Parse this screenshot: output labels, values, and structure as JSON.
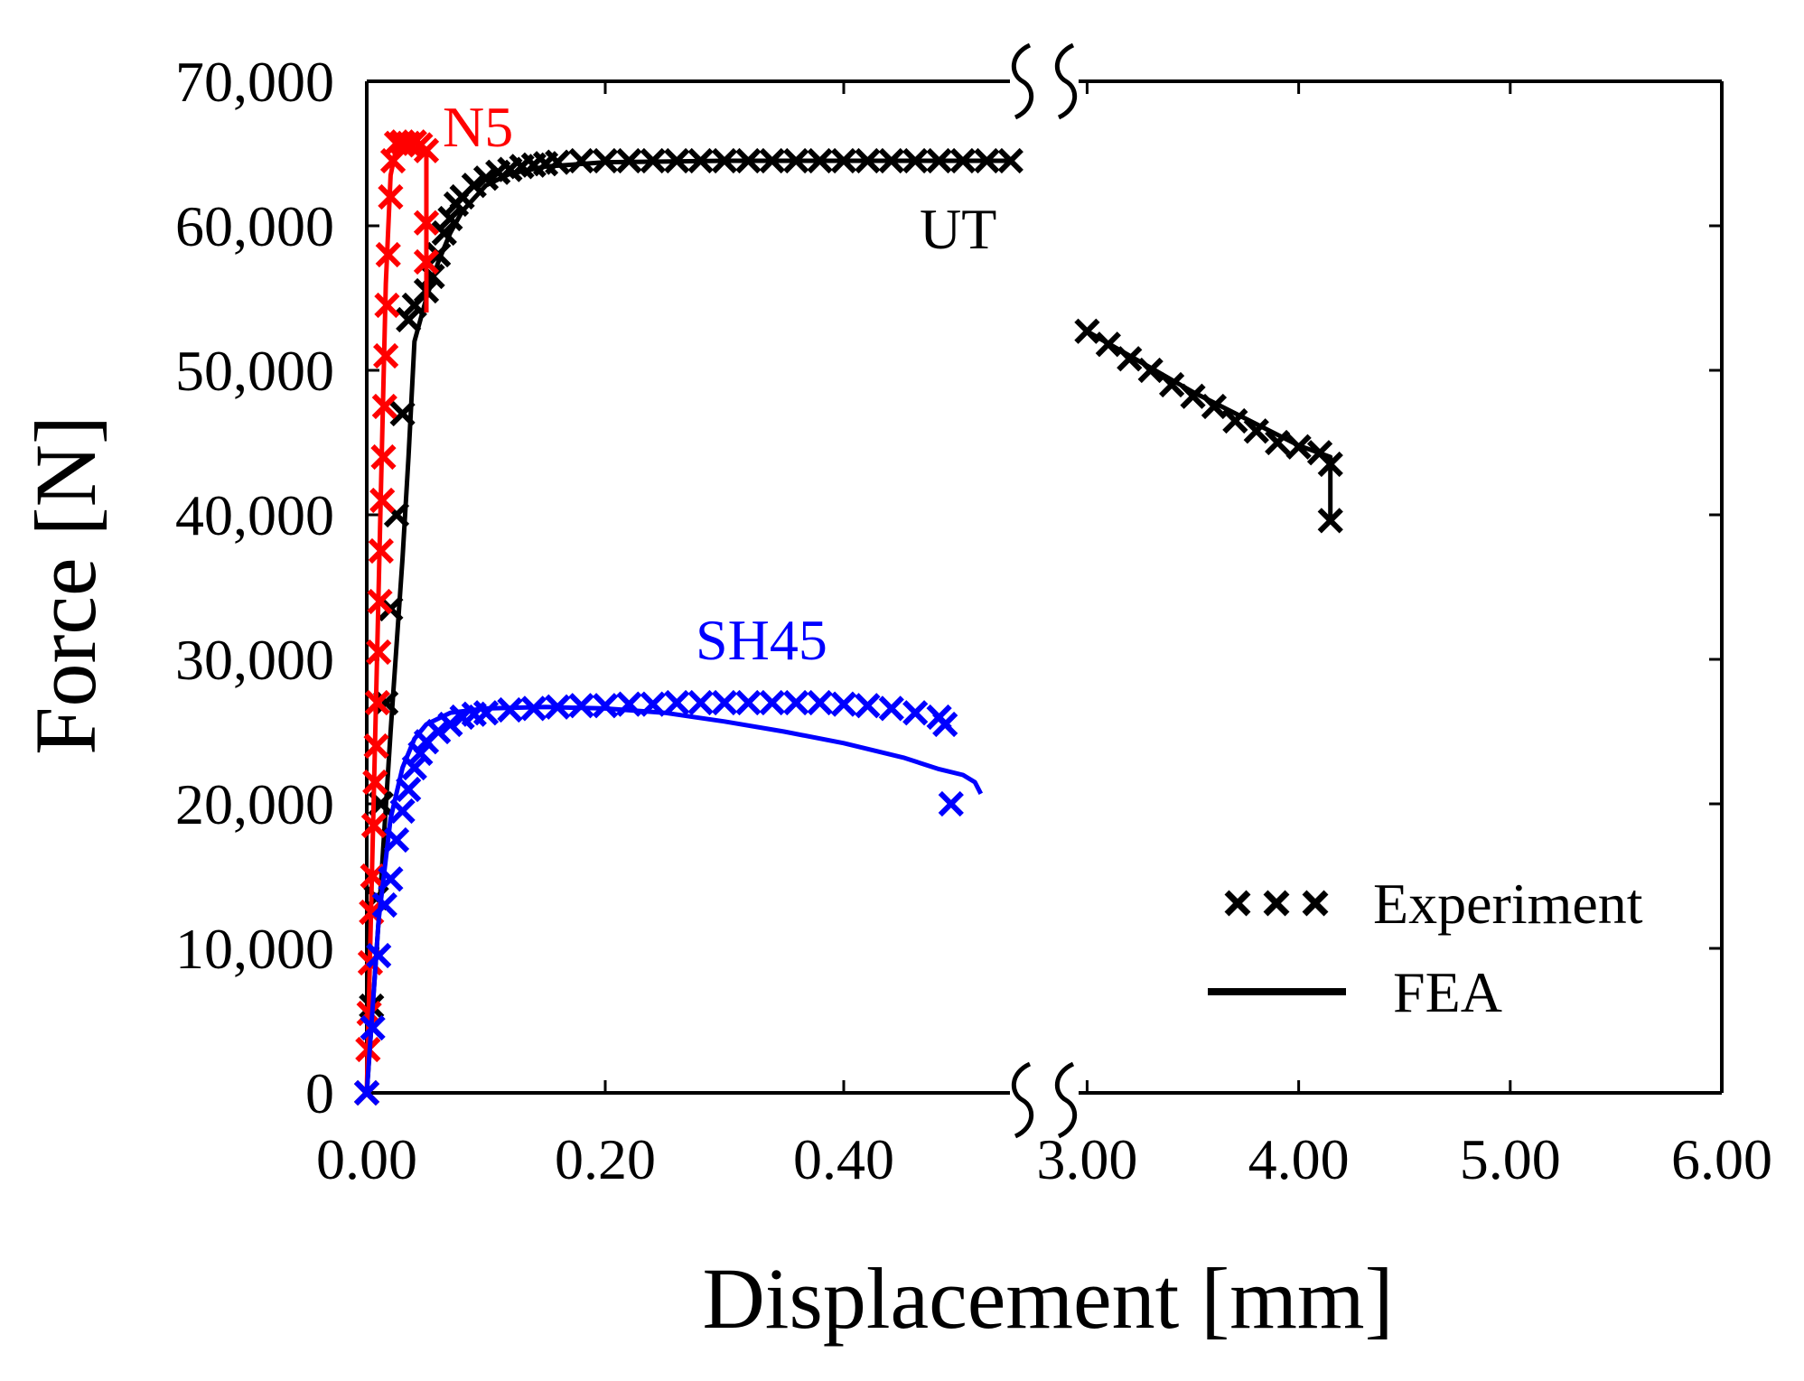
{
  "chart_data": {
    "type": "scatter",
    "title": "",
    "xlabel": "Displacement [mm]",
    "ylabel": "Force [N]",
    "broken_x_axis": true,
    "x_segments": [
      {
        "range": [
          0.0,
          0.55
        ],
        "ticks": [
          "0.00",
          "0.20",
          "0.40"
        ]
      },
      {
        "range": [
          2.9,
          6.0
        ],
        "ticks": [
          "3.00",
          "4.00",
          "5.00",
          "6.00"
        ]
      }
    ],
    "ylim": [
      0,
      70000
    ],
    "yticks": [
      "0",
      "10,000",
      "20,000",
      "30,000",
      "40,000",
      "50,000",
      "60,000",
      "70,000"
    ],
    "legend": {
      "position": "bottom-right",
      "entries": [
        {
          "label": "Experiment",
          "marker": "x"
        },
        {
          "label": "FEA",
          "marker": "line"
        }
      ]
    },
    "annotations": [
      {
        "text": "N5",
        "color": "#ff0000"
      },
      {
        "text": "UT",
        "color": "#000000"
      },
      {
        "text": "SH45",
        "color": "#0000ff"
      }
    ],
    "series": [
      {
        "name": "UT",
        "color": "#000000",
        "experiment": {
          "x": [
            0.0,
            0.004,
            0.008,
            0.012,
            0.016,
            0.02,
            0.025,
            0.03,
            0.035,
            0.04,
            0.05,
            0.055,
            0.06,
            0.065,
            0.07,
            0.075,
            0.08,
            0.09,
            0.1,
            0.11,
            0.12,
            0.13,
            0.14,
            0.15,
            0.16,
            0.18,
            0.2,
            0.22,
            0.24,
            0.26,
            0.28,
            0.3,
            0.32,
            0.34,
            0.36,
            0.38,
            0.4,
            0.42,
            0.44,
            0.46,
            0.48,
            0.5,
            0.52,
            0.54,
            3.0,
            3.1,
            3.2,
            3.3,
            3.4,
            3.5,
            3.6,
            3.7,
            3.8,
            3.9,
            4.0,
            4.1,
            4.15,
            4.15
          ],
          "y": [
            0,
            6000,
            13500,
            20000,
            27000,
            33500,
            40000,
            47000,
            53500,
            54500,
            55500,
            56500,
            58000,
            59500,
            60500,
            61500,
            62000,
            62800,
            63300,
            63700,
            63900,
            64100,
            64200,
            64300,
            64400,
            64500,
            64500,
            64500,
            64500,
            64500,
            64500,
            64500,
            64500,
            64500,
            64500,
            64500,
            64500,
            64500,
            64500,
            64500,
            64500,
            64500,
            64500,
            64500,
            52700,
            51800,
            50800,
            50000,
            49000,
            48200,
            47500,
            46500,
            45800,
            45000,
            44700,
            44300,
            43500,
            39600
          ]
        },
        "fea": {
          "x": [
            0.0,
            0.01,
            0.02,
            0.03,
            0.035,
            0.04,
            0.05,
            0.06,
            0.07,
            0.08,
            0.1,
            0.12,
            0.15,
            0.2,
            0.3,
            0.4,
            0.5,
            0.54,
            3.0,
            3.5,
            4.0,
            4.15,
            4.15
          ],
          "y": [
            0,
            12000,
            25000,
            37000,
            44000,
            52000,
            55000,
            57500,
            59500,
            61000,
            62800,
            63600,
            64100,
            64400,
            64500,
            64500,
            64500,
            64500,
            52700,
            48500,
            44800,
            44000,
            39600
          ]
        }
      },
      {
        "name": "N5",
        "color": "#ff0000",
        "experiment": {
          "x": [
            0.0,
            0.001,
            0.002,
            0.003,
            0.004,
            0.005,
            0.006,
            0.007,
            0.008,
            0.009,
            0.01,
            0.011,
            0.012,
            0.013,
            0.014,
            0.015,
            0.016,
            0.017,
            0.018,
            0.02,
            0.022,
            0.025,
            0.03,
            0.035,
            0.04,
            0.045,
            0.05,
            0.05,
            0.05
          ],
          "y": [
            0,
            3000,
            5500,
            9000,
            12500,
            15000,
            18500,
            21500,
            24000,
            27000,
            30500,
            34000,
            37500,
            41000,
            44000,
            47500,
            51000,
            54500,
            58000,
            62000,
            64500,
            65700,
            65800,
            65700,
            65800,
            65600,
            65200,
            60200,
            57500
          ]
        },
        "fea": {
          "x": [
            0.0,
            0.004,
            0.008,
            0.012,
            0.016,
            0.02,
            0.025,
            0.03,
            0.04,
            0.05,
            0.05
          ],
          "y": [
            0,
            14000,
            28000,
            42000,
            56000,
            63500,
            65500,
            65900,
            65900,
            65300,
            54000
          ]
        }
      },
      {
        "name": "SH45",
        "color": "#0000ff",
        "experiment": {
          "x": [
            0.0,
            0.005,
            0.01,
            0.015,
            0.02,
            0.025,
            0.03,
            0.035,
            0.04,
            0.045,
            0.05,
            0.06,
            0.07,
            0.08,
            0.09,
            0.1,
            0.12,
            0.14,
            0.16,
            0.18,
            0.2,
            0.22,
            0.24,
            0.26,
            0.28,
            0.3,
            0.32,
            0.34,
            0.36,
            0.38,
            0.4,
            0.42,
            0.44,
            0.46,
            0.48,
            0.485,
            0.49
          ],
          "y": [
            0,
            4500,
            9500,
            13000,
            14800,
            17500,
            19500,
            21000,
            22500,
            23500,
            24300,
            25000,
            25500,
            26000,
            26200,
            26300,
            26500,
            26600,
            26700,
            26800,
            26800,
            26900,
            26900,
            27000,
            27000,
            27000,
            27000,
            27000,
            27000,
            27000,
            26900,
            26800,
            26600,
            26300,
            26000,
            25500,
            20000
          ]
        },
        "fea": {
          "x": [
            0.0,
            0.01,
            0.02,
            0.03,
            0.04,
            0.05,
            0.07,
            0.1,
            0.15,
            0.2,
            0.25,
            0.3,
            0.35,
            0.4,
            0.45,
            0.48,
            0.5,
            0.51,
            0.515
          ],
          "y": [
            0,
            12000,
            19000,
            22500,
            24500,
            25500,
            26300,
            26600,
            26700,
            26600,
            26300,
            25700,
            25000,
            24200,
            23200,
            22400,
            22000,
            21500,
            20700
          ]
        }
      }
    ]
  }
}
